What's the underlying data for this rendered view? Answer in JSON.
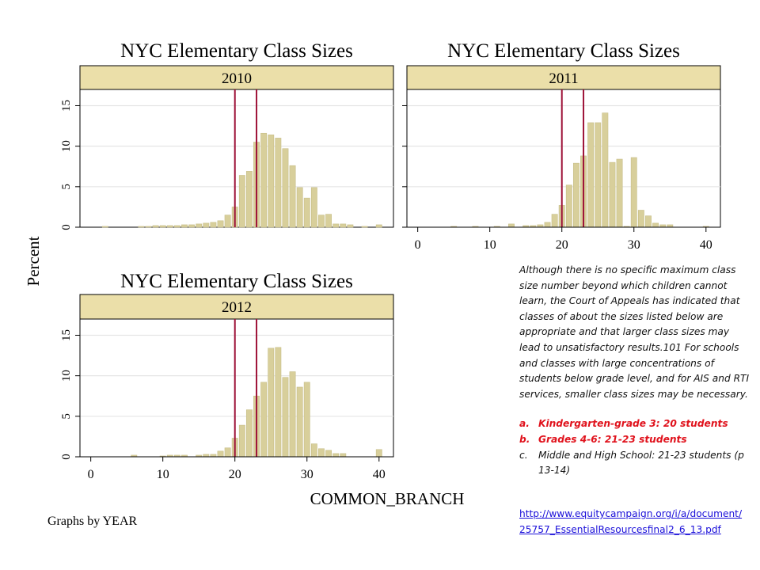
{
  "chart_data": [
    {
      "type": "bar",
      "title": "NYC Elementary Class Sizes",
      "panel_label": "2010",
      "xlim": [
        -1.5,
        42
      ],
      "ylim": [
        0,
        17
      ],
      "yticks": [
        0,
        5,
        10,
        15
      ],
      "show_x_ticks": false,
      "reference_lines": [
        20,
        23
      ],
      "bar_width": 0.8,
      "x": [
        2,
        7,
        8,
        9,
        10,
        11,
        12,
        13,
        14,
        15,
        16,
        17,
        18,
        19,
        20,
        21,
        22,
        23,
        24,
        25,
        26,
        27,
        28,
        29,
        30,
        31,
        32,
        33,
        34,
        35,
        36,
        38,
        40
      ],
      "values": [
        0.1,
        0.1,
        0.1,
        0.2,
        0.2,
        0.2,
        0.2,
        0.3,
        0.3,
        0.4,
        0.5,
        0.6,
        0.8,
        1.5,
        2.5,
        6.4,
        6.9,
        10.5,
        11.6,
        11.4,
        11.0,
        9.7,
        7.6,
        4.9,
        3.6,
        4.9,
        1.5,
        1.6,
        0.4,
        0.4,
        0.3,
        0.1,
        0.3
      ]
    },
    {
      "type": "bar",
      "title": "NYC Elementary Class Sizes",
      "panel_label": "2011",
      "xlim": [
        -1.5,
        42
      ],
      "ylim": [
        0,
        17
      ],
      "yticks": [
        0,
        5,
        10,
        15
      ],
      "xticks": [
        0,
        10,
        20,
        30,
        40
      ],
      "show_x_ticks": true,
      "reference_lines": [
        20,
        23
      ],
      "bar_width": 0.8,
      "x": [
        5,
        8,
        11,
        13,
        15,
        16,
        17,
        18,
        19,
        20,
        21,
        22,
        23,
        24,
        25,
        26,
        27,
        28,
        29,
        30,
        31,
        32,
        33,
        34,
        35,
        40
      ],
      "values": [
        0.1,
        0.1,
        0.1,
        0.4,
        0.2,
        0.2,
        0.3,
        0.6,
        1.6,
        2.7,
        5.2,
        7.9,
        8.8,
        12.9,
        12.9,
        14.1,
        8.0,
        8.4,
        0.1,
        8.6,
        2.1,
        1.4,
        0.5,
        0.3,
        0.3,
        0.1
      ]
    },
    {
      "type": "bar",
      "title": "NYC Elementary Class Sizes",
      "panel_label": "2012",
      "xlim": [
        -1.5,
        42
      ],
      "ylim": [
        0,
        17
      ],
      "yticks": [
        0,
        5,
        10,
        15
      ],
      "xticks": [
        0,
        10,
        20,
        30,
        40
      ],
      "show_x_ticks": true,
      "reference_lines": [
        20,
        23
      ],
      "bar_width": 0.8,
      "x": [
        6,
        10,
        11,
        12,
        13,
        15,
        16,
        17,
        18,
        19,
        20,
        21,
        22,
        23,
        24,
        25,
        26,
        27,
        28,
        29,
        30,
        31,
        32,
        33,
        34,
        35,
        40
      ],
      "values": [
        0.2,
        0.1,
        0.2,
        0.2,
        0.2,
        0.2,
        0.3,
        0.3,
        0.7,
        1.1,
        2.3,
        3.9,
        5.8,
        7.5,
        9.2,
        13.4,
        13.5,
        9.8,
        10.5,
        8.6,
        9.2,
        1.6,
        1.0,
        0.8,
        0.4,
        0.4,
        0.9
      ]
    }
  ],
  "axis_labels": {
    "y": "Percent",
    "x": "COMMON_BRANCH"
  },
  "footer": "Graphs by YEAR",
  "colors": {
    "bar_fill": "#d8cf9b",
    "bar_stroke": "#c7be88",
    "strip_fill": "#ebdfa9",
    "reference_line": "#9e1238",
    "grid": "#e5e5e5",
    "axis": "#000000"
  },
  "note": {
    "paragraph": "Although there is no specific maximum class size number beyond which children cannot learn, the Court of Appeals has indicated that classes of about the sizes listed below are appropriate and that larger class sizes may lead to unsatisfactory results.101 For schools and classes with large concentrations of students below grade level, and for AIS and RTI services, smaller class sizes may be necessary.",
    "items": [
      {
        "marker": "a.",
        "text": "Kindergarten-grade 3: 20 students"
      },
      {
        "marker": "b.",
        "text": "Grades 4-6: 21-23 students"
      },
      {
        "marker": "c.",
        "text": "Middle and High School: 21-23 students (p 13-14)"
      }
    ]
  },
  "link_text": "http://www.equitycampaign.org/i/a/document/25757_EssentialResourcesfinal2_6_13.pdf"
}
